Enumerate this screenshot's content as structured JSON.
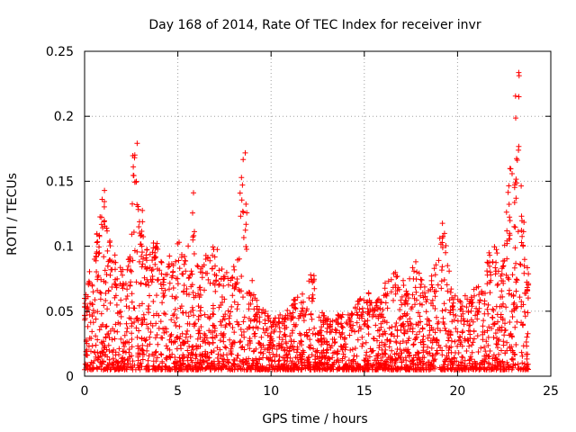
{
  "chart_data": {
    "type": "scatter",
    "title": "Day 168 of 2014, Rate Of TEC Index for receiver invr",
    "xlabel": "GPS time / hours",
    "ylabel": "ROTI / TECUs",
    "xlim": [
      0,
      25
    ],
    "ylim": [
      0,
      0.25
    ],
    "xticks": [
      0,
      5,
      10,
      15,
      20,
      25
    ],
    "xtick_labels": [
      "0",
      "5",
      "10",
      "15",
      "20",
      "25"
    ],
    "yticks": [
      0,
      0.05,
      0.1,
      0.15,
      0.2,
      0.25
    ],
    "ytick_labels": [
      "0",
      "0.05",
      "0.1",
      "0.15",
      "0.2",
      "0.25"
    ],
    "grid": true,
    "marker": "+",
    "series_color": "#ff0000",
    "data_range": [
      0,
      23.8
    ],
    "envelope": [
      [
        0.0,
        0.06
      ],
      [
        0.3,
        0.085
      ],
      [
        0.7,
        0.12
      ],
      [
        1.0,
        0.15
      ],
      [
        1.3,
        0.11
      ],
      [
        1.7,
        0.09
      ],
      [
        2.0,
        0.085
      ],
      [
        2.4,
        0.095
      ],
      [
        2.7,
        0.18
      ],
      [
        3.0,
        0.13
      ],
      [
        3.4,
        0.095
      ],
      [
        3.8,
        0.11
      ],
      [
        4.2,
        0.085
      ],
      [
        4.6,
        0.095
      ],
      [
        5.0,
        0.105
      ],
      [
        5.4,
        0.095
      ],
      [
        5.8,
        0.145
      ],
      [
        6.2,
        0.085
      ],
      [
        6.6,
        0.095
      ],
      [
        7.0,
        0.1
      ],
      [
        7.5,
        0.08
      ],
      [
        8.0,
        0.085
      ],
      [
        8.5,
        0.175
      ],
      [
        8.9,
        0.075
      ],
      [
        9.3,
        0.06
      ],
      [
        9.7,
        0.05
      ],
      [
        10.2,
        0.045
      ],
      [
        10.7,
        0.05
      ],
      [
        11.2,
        0.06
      ],
      [
        11.7,
        0.065
      ],
      [
        12.2,
        0.082
      ],
      [
        12.7,
        0.05
      ],
      [
        13.2,
        0.045
      ],
      [
        13.7,
        0.05
      ],
      [
        14.2,
        0.05
      ],
      [
        14.7,
        0.06
      ],
      [
        15.2,
        0.065
      ],
      [
        15.7,
        0.06
      ],
      [
        16.2,
        0.075
      ],
      [
        16.7,
        0.085
      ],
      [
        17.2,
        0.075
      ],
      [
        17.7,
        0.09
      ],
      [
        18.2,
        0.075
      ],
      [
        18.7,
        0.08
      ],
      [
        19.2,
        0.12
      ],
      [
        19.7,
        0.065
      ],
      [
        20.2,
        0.06
      ],
      [
        20.7,
        0.065
      ],
      [
        21.2,
        0.07
      ],
      [
        21.6,
        0.095
      ],
      [
        22.0,
        0.11
      ],
      [
        22.4,
        0.09
      ],
      [
        22.8,
        0.16
      ],
      [
        23.2,
        0.235
      ],
      [
        23.5,
        0.12
      ],
      [
        23.8,
        0.08
      ]
    ]
  }
}
